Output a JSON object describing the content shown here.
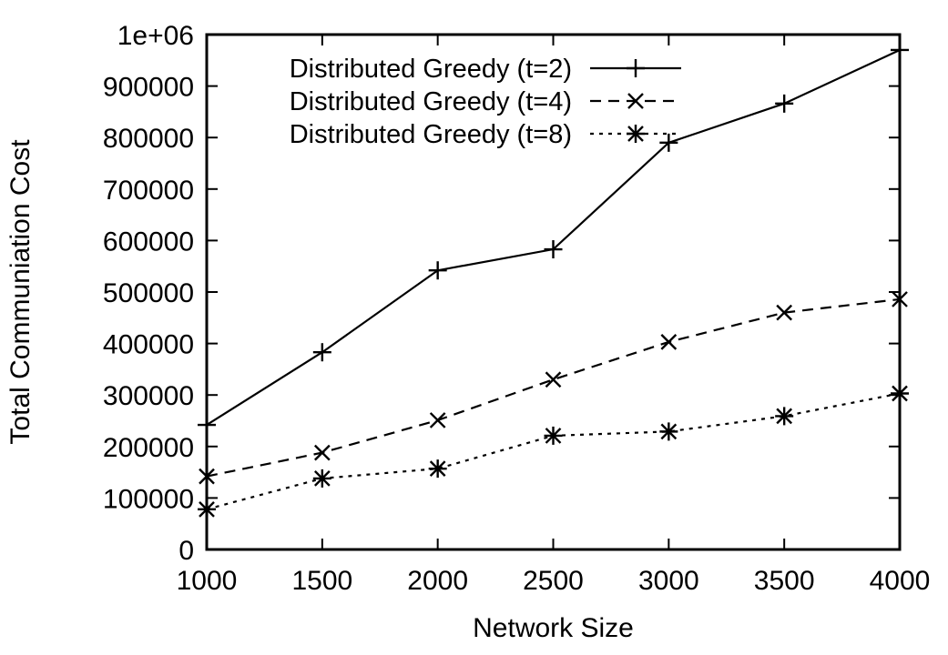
{
  "chart_data": {
    "type": "line",
    "title": "",
    "xlabel": "Network Size",
    "ylabel": "Total Communiation Cost",
    "x": [
      1000,
      1500,
      2000,
      2500,
      3000,
      3500,
      4000
    ],
    "xlim": [
      1000,
      4000
    ],
    "ylim": [
      0,
      1000000
    ],
    "xticks": [
      1000,
      1500,
      2000,
      2500,
      3000,
      3500,
      4000
    ],
    "xtick_labels": [
      "1000",
      "1500",
      "2000",
      "2500",
      "3000",
      "3500",
      "4000"
    ],
    "yticks": [
      0,
      100000,
      200000,
      300000,
      400000,
      500000,
      600000,
      700000,
      800000,
      900000,
      1000000
    ],
    "ytick_labels": [
      "0",
      "100000",
      "200000",
      "300000",
      "400000",
      "500000",
      "600000",
      "700000",
      "800000",
      "900000",
      "1e+06"
    ],
    "grid": false,
    "legend_position": "top-left",
    "series": [
      {
        "name": "Distributed Greedy (t=2)",
        "line_style": "solid",
        "marker": "plus",
        "values": [
          242000,
          383000,
          542000,
          583000,
          790000,
          866000,
          970000
        ]
      },
      {
        "name": "Distributed Greedy (t=4)",
        "line_style": "dashed",
        "marker": "cross",
        "values": [
          142000,
          188000,
          251000,
          330000,
          403000,
          460000,
          486000
        ]
      },
      {
        "name": "Distributed Greedy (t=8)",
        "line_style": "dotted",
        "marker": "star",
        "values": [
          78000,
          138000,
          157000,
          221000,
          229000,
          259000,
          303000
        ]
      }
    ]
  }
}
